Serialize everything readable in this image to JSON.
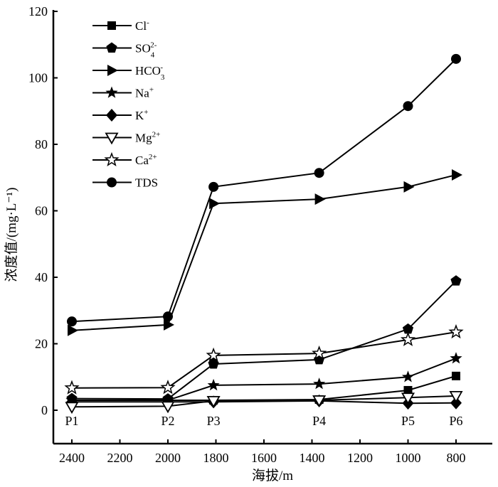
{
  "chart_data": {
    "type": "line",
    "title": "",
    "xlabel": "海拔/m",
    "ylabel": "浓度值/(mg·L⁻¹)",
    "xlim": [
      2550,
      650
    ],
    "ylim": [
      -10,
      120
    ],
    "x_reversed": true,
    "x_ticks": [
      2400,
      2200,
      2000,
      1800,
      1600,
      1400,
      1200,
      1000,
      800
    ],
    "y_ticks": [
      0,
      20,
      40,
      60,
      80,
      100,
      120
    ],
    "grid": false,
    "legend_position": "top-left",
    "point_labels": [
      "P1",
      "P2",
      "P3",
      "P4",
      "P5",
      "P6"
    ],
    "x": [
      2400,
      2000,
      1810,
      1370,
      1000,
      800
    ],
    "series": [
      {
        "name": "Cl⁻",
        "label_base": "Cl",
        "label_sup": "-",
        "label_sub": "",
        "marker": "square-filled",
        "values": [
          3.0,
          3.0,
          3.0,
          3.2,
          6.0,
          10.3
        ]
      },
      {
        "name": "SO₄²⁻",
        "label_base": "SO",
        "label_sup": "2-",
        "label_sub": "4",
        "marker": "pentagon-filled",
        "values": [
          3.5,
          3.4,
          13.9,
          15.2,
          24.4,
          38.9
        ]
      },
      {
        "name": "HCO₃⁻",
        "label_base": "HCO",
        "label_sup": "-",
        "label_sub": "3",
        "marker": "triangle-right-filled",
        "values": [
          24.0,
          25.7,
          62.2,
          63.5,
          67.2,
          70.8
        ]
      },
      {
        "name": "Na⁺",
        "label_base": "Na",
        "label_sup": "+",
        "label_sub": "",
        "marker": "star-filled",
        "values": [
          3.0,
          3.0,
          7.5,
          7.9,
          10.0,
          15.6
        ]
      },
      {
        "name": "K⁺",
        "label_base": "K",
        "label_sup": "+",
        "label_sub": "",
        "marker": "diamond-filled",
        "values": [
          2.5,
          2.5,
          2.5,
          2.8,
          2.1,
          2.2
        ]
      },
      {
        "name": "Mg²⁺",
        "label_base": "Mg",
        "label_sup": "2+",
        "label_sub": "",
        "marker": "triangle-down-open",
        "values": [
          1.0,
          1.2,
          2.8,
          3.0,
          3.8,
          4.3
        ]
      },
      {
        "name": "Ca²⁺",
        "label_base": "Ca",
        "label_sup": "2+",
        "label_sub": "",
        "marker": "star-open",
        "values": [
          6.7,
          6.8,
          16.5,
          17.1,
          21.2,
          23.5
        ]
      },
      {
        "name": "TDS",
        "label_base": "TDS",
        "label_sup": "",
        "label_sub": "",
        "marker": "circle-filled",
        "values": [
          26.7,
          28.2,
          67.2,
          71.4,
          91.5,
          105.7
        ]
      }
    ],
    "colors": {
      "line": "#000000",
      "background": "#ffffff"
    }
  }
}
